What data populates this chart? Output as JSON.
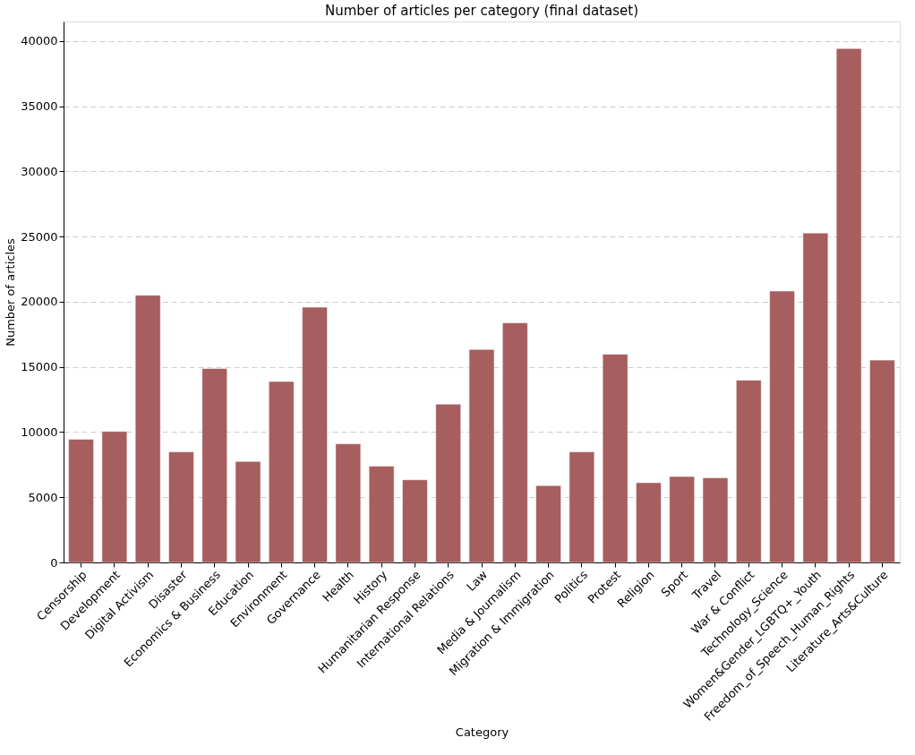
{
  "chart_data": {
    "type": "bar",
    "title": "Number of articles per category (final dataset)",
    "xlabel": "Category",
    "ylabel": "Number of articles",
    "categories": [
      "Censorship",
      "Development",
      "Digital Activism",
      "Disaster",
      "Economics & Business",
      "Education",
      "Environment",
      "Governance",
      "Health",
      "History",
      "Humanitarian Response",
      "International Relations",
      "Law",
      "Media & Journalism",
      "Migration & Immigration",
      "Politics",
      "Protest",
      "Religion",
      "Sport",
      "Travel",
      "War & Conflict",
      "Technology_Science",
      "Women&Gender_LGBTQ+_Youth",
      "Freedom_of_Speech_Human_Rights",
      "Literature_Arts&Culture"
    ],
    "values": [
      9450,
      10050,
      20500,
      8480,
      14880,
      7740,
      13880,
      19580,
      9100,
      7390,
      6340,
      12140,
      16340,
      18380,
      5900,
      8480,
      15970,
      6120,
      6590,
      6490,
      13980,
      20820,
      25270,
      39430,
      15520
    ],
    "color": "#a65e5e",
    "ylim": [
      0,
      41500
    ],
    "yticks": [
      0,
      5000,
      10000,
      15000,
      20000,
      25000,
      30000,
      35000,
      40000
    ],
    "grid": "y"
  }
}
